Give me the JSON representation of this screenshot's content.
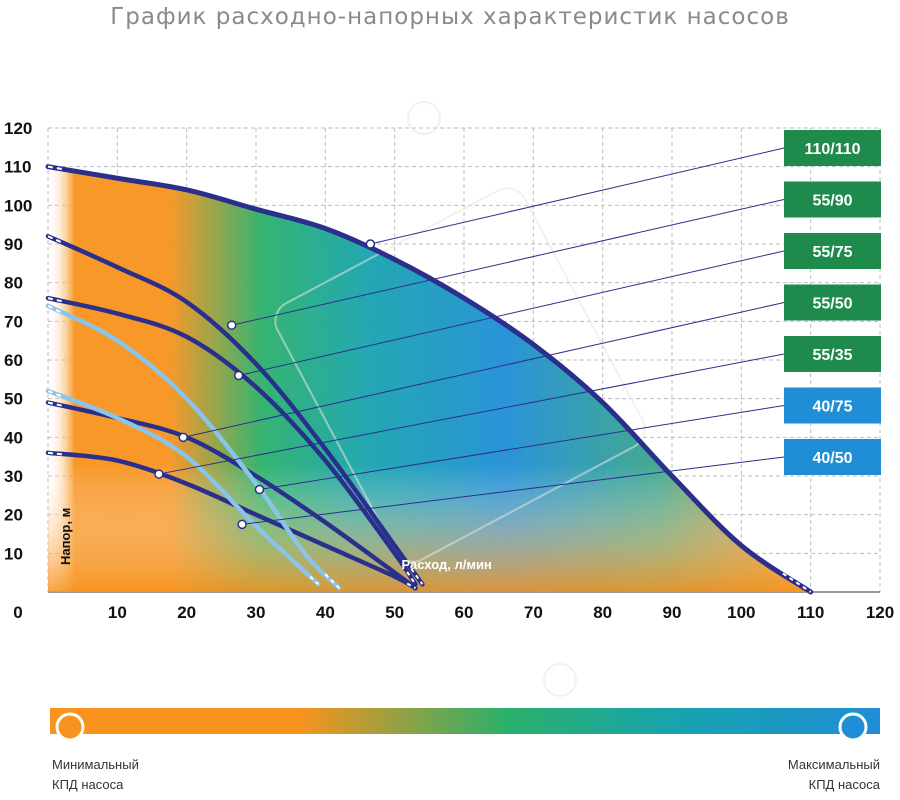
{
  "chart_data": {
    "type": "line",
    "title": "График расходно-напорных характеристик насосов",
    "xlabel": "Расход, л/мин",
    "ylabel": "Напор, м",
    "xlim": [
      0,
      120
    ],
    "ylim": [
      0,
      120
    ],
    "xticks": [
      "0",
      "10",
      "20",
      "30",
      "40",
      "50",
      "60",
      "70",
      "80",
      "90",
      "100",
      "110",
      "120"
    ],
    "yticks": [
      "10",
      "20",
      "30",
      "40",
      "50",
      "60",
      "70",
      "80",
      "90",
      "100",
      "110",
      "120"
    ],
    "grid": true,
    "series": [
      {
        "name": "110/110",
        "color": "#1e8a4c",
        "points": [
          [
            0,
            110
          ],
          [
            10,
            107
          ],
          [
            20,
            104
          ],
          [
            30,
            99
          ],
          [
            40,
            94
          ],
          [
            50,
            86
          ],
          [
            60,
            76
          ],
          [
            70,
            64
          ],
          [
            80,
            49
          ],
          [
            90,
            30
          ],
          [
            100,
            12
          ],
          [
            110,
            0
          ]
        ],
        "marker": [
          46.5,
          90
        ]
      },
      {
        "name": "55/90",
        "color": "#1e8a4c",
        "points": [
          [
            0,
            92
          ],
          [
            10,
            84
          ],
          [
            20,
            75
          ],
          [
            30,
            59
          ],
          [
            40,
            37
          ],
          [
            50,
            12
          ],
          [
            54,
            2
          ]
        ],
        "marker": [
          26.5,
          69
        ]
      },
      {
        "name": "55/75",
        "color": "#1e8a4c",
        "points": [
          [
            0,
            76
          ],
          [
            10,
            72
          ],
          [
            20,
            66
          ],
          [
            30,
            53
          ],
          [
            40,
            34
          ],
          [
            50,
            10
          ],
          [
            53,
            2
          ]
        ],
        "marker": [
          27.5,
          56
        ]
      },
      {
        "name": "55/50",
        "color": "#1e8a4c",
        "points": [
          [
            0,
            49
          ],
          [
            10,
            45
          ],
          [
            20,
            40
          ],
          [
            30,
            30
          ],
          [
            40,
            18
          ],
          [
            50,
            5
          ],
          [
            53,
            1
          ]
        ],
        "marker": [
          19.5,
          40
        ]
      },
      {
        "name": "55/35",
        "color": "#1e8a4c",
        "points": [
          [
            0,
            36
          ],
          [
            10,
            34
          ],
          [
            20,
            28
          ],
          [
            30,
            20
          ],
          [
            40,
            12
          ],
          [
            50,
            4
          ],
          [
            53,
            1
          ]
        ],
        "marker": [
          16,
          30.5
        ]
      },
      {
        "name": "40/75",
        "color": "#1f8ed6",
        "points": [
          [
            0,
            74
          ],
          [
            10,
            65
          ],
          [
            20,
            50
          ],
          [
            30,
            28
          ],
          [
            37,
            10
          ],
          [
            42,
            1
          ]
        ],
        "marker": [
          30.5,
          26.5
        ]
      },
      {
        "name": "40/50",
        "color": "#1f8ed6",
        "points": [
          [
            0,
            52
          ],
          [
            10,
            45
          ],
          [
            20,
            35
          ],
          [
            30,
            17
          ],
          [
            36,
            7
          ],
          [
            39,
            2
          ]
        ],
        "marker": [
          28,
          17.5
        ]
      }
    ],
    "colorbar": {
      "min_label": "Минимальный КПД насоса",
      "max_label": "Максимальный КПД насоса",
      "min_color": "#f7931e",
      "max_color": "#1f8ed6"
    }
  }
}
